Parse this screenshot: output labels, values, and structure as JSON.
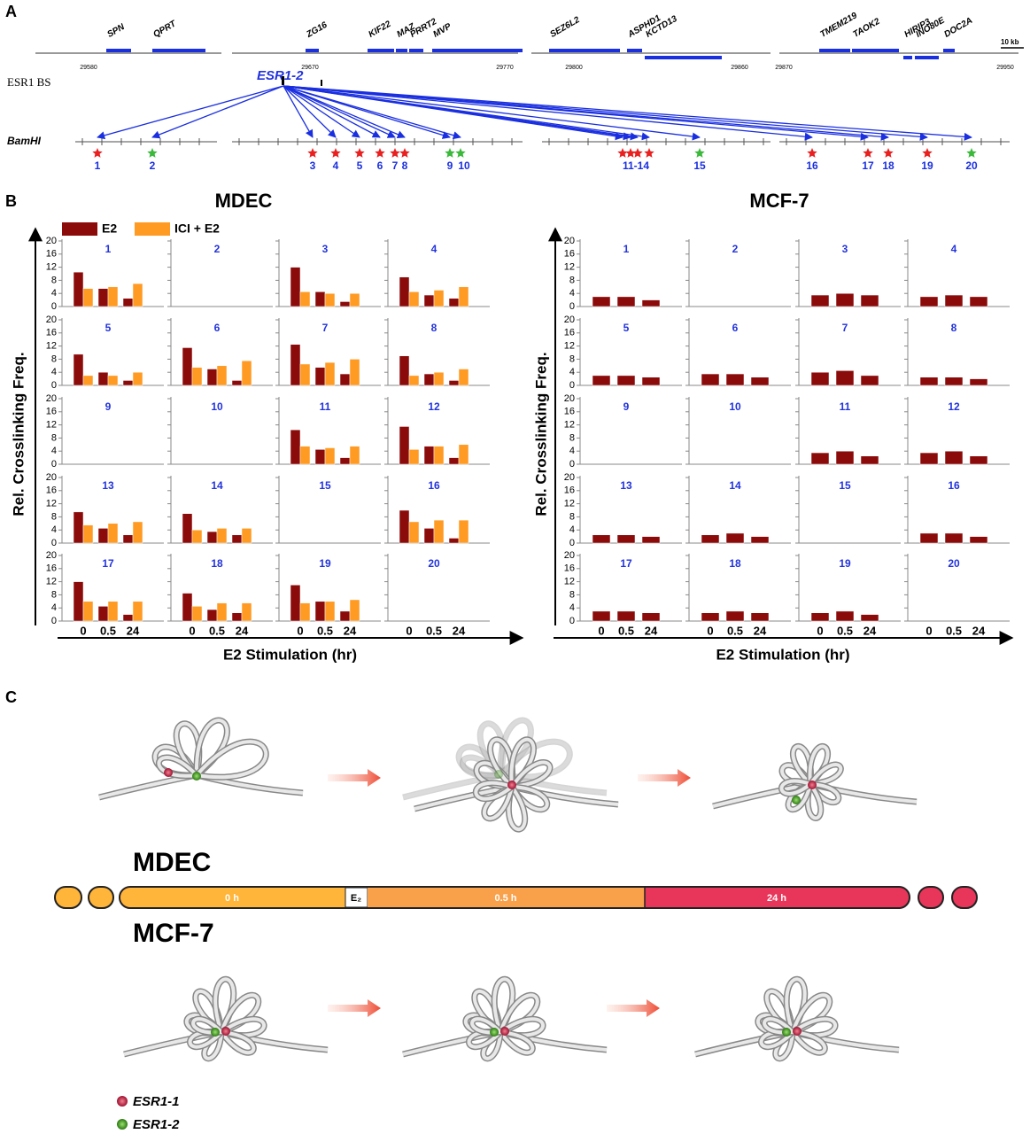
{
  "panel_labels": [
    "A",
    "B",
    "C"
  ],
  "map": {
    "genes": [
      "SPN",
      "QPRT",
      "ZG16",
      "KIF22",
      "MAZ",
      "PRRT2",
      "MVP",
      "SEZ6L2",
      "ASPHD1",
      "KCTD13",
      "TMEM219",
      "TAOK2",
      "HIRIP3",
      "INO80E",
      "DOC2A"
    ],
    "coordinates": [
      "29580",
      "29670",
      "29770",
      "29800",
      "29860",
      "29870",
      "29950"
    ],
    "scale": "10 kb",
    "track_label": "ESR1 BS",
    "site_label": "ESR1-2",
    "enzyme_label": "BamHI",
    "fragments": [
      {
        "label": "1",
        "stars": [
          "red"
        ]
      },
      {
        "label": "2",
        "stars": [
          "green"
        ]
      },
      {
        "label": "3",
        "stars": [
          "red"
        ]
      },
      {
        "label": "4",
        "stars": [
          "red"
        ]
      },
      {
        "label": "5",
        "stars": [
          "red"
        ]
      },
      {
        "label": "6",
        "stars": [
          "red"
        ]
      },
      {
        "label": "7",
        "stars": [
          "red"
        ]
      },
      {
        "label": "8",
        "stars": [
          "red"
        ]
      },
      {
        "label": "9",
        "stars": [
          "green"
        ]
      },
      {
        "label": "10",
        "stars": [
          "green"
        ]
      },
      {
        "label": "11-14",
        "stars": [
          "red",
          "red",
          "red",
          "red"
        ]
      },
      {
        "label": "15",
        "stars": [
          "green"
        ]
      },
      {
        "label": "16",
        "stars": [
          "red"
        ]
      },
      {
        "label": "17",
        "stars": [
          "red"
        ]
      },
      {
        "label": "18",
        "stars": [
          "red"
        ]
      },
      {
        "label": "19",
        "stars": [
          "red"
        ]
      },
      {
        "label": "20",
        "stars": [
          "green"
        ]
      }
    ]
  },
  "chart_data": [
    {
      "type": "bar",
      "title": "MDEC",
      "y_label": "Rel. Crosslinking Freq.",
      "x_label": "E2 Stimulation (hr)",
      "categories": [
        "0",
        "0.5",
        "24"
      ],
      "ylim": [
        0,
        20
      ],
      "yticks": [
        0,
        4,
        8,
        12,
        16,
        20
      ],
      "series": [
        {
          "name": "E2",
          "color": "#8b0a0a"
        },
        {
          "name": "ICI + E2",
          "color": "#ff9a22"
        }
      ],
      "panels": [
        {
          "label": "1",
          "series": [
            [
              10.5,
              5.5,
              2.5
            ],
            [
              5.5,
              6,
              7
            ]
          ]
        },
        {
          "label": "2"
        },
        {
          "label": "3",
          "series": [
            [
              12,
              4.5,
              1.5
            ],
            [
              4.5,
              4,
              4
            ]
          ]
        },
        {
          "label": "4",
          "series": [
            [
              9,
              3.5,
              2.5
            ],
            [
              4.5,
              5,
              6
            ]
          ]
        },
        {
          "label": "5",
          "series": [
            [
              9.5,
              4,
              1.5
            ],
            [
              3,
              3,
              4
            ]
          ]
        },
        {
          "label": "6",
          "series": [
            [
              11.5,
              5,
              1.5
            ],
            [
              5.5,
              6,
              7.5
            ]
          ]
        },
        {
          "label": "7",
          "series": [
            [
              12.5,
              5.5,
              3.5
            ],
            [
              6.5,
              7,
              8
            ]
          ]
        },
        {
          "label": "8",
          "series": [
            [
              9,
              3.5,
              1.5
            ],
            [
              3,
              4,
              5
            ]
          ]
        },
        {
          "label": "9"
        },
        {
          "label": "10"
        },
        {
          "label": "11",
          "series": [
            [
              10.5,
              4.5,
              2
            ],
            [
              5.5,
              5,
              5.5
            ]
          ]
        },
        {
          "label": "12",
          "series": [
            [
              11.5,
              5.5,
              2
            ],
            [
              4.5,
              5.5,
              6
            ]
          ]
        },
        {
          "label": "13",
          "series": [
            [
              9.5,
              4.5,
              2.5
            ],
            [
              5.5,
              6,
              6.5
            ]
          ]
        },
        {
          "label": "14",
          "series": [
            [
              9,
              3.5,
              2.5
            ],
            [
              4,
              4.5,
              4.5
            ]
          ]
        },
        {
          "label": "15"
        },
        {
          "label": "16",
          "series": [
            [
              10,
              4.5,
              1.5
            ],
            [
              6.5,
              7,
              7
            ]
          ]
        },
        {
          "label": "17",
          "series": [
            [
              12,
              4.5,
              2
            ],
            [
              6,
              6,
              6
            ]
          ]
        },
        {
          "label": "18",
          "series": [
            [
              8.5,
              3.5,
              2.5
            ],
            [
              4.5,
              5.5,
              5.5
            ]
          ]
        },
        {
          "label": "19",
          "series": [
            [
              11,
              6,
              3
            ],
            [
              5.5,
              6,
              6.5
            ]
          ]
        },
        {
          "label": "20"
        }
      ]
    },
    {
      "type": "bar",
      "title": "MCF-7",
      "y_label": "Rel. Crosslinking Freq.",
      "x_label": "E2 Stimulation (hr)",
      "categories": [
        "0",
        "0.5",
        "24"
      ],
      "ylim": [
        0,
        20
      ],
      "yticks": [
        0,
        4,
        8,
        12,
        16,
        20
      ],
      "series": [
        {
          "color": "#8b0a0a"
        }
      ],
      "panels": [
        {
          "label": "1",
          "series": [
            [
              3,
              3,
              2
            ]
          ]
        },
        {
          "label": "2"
        },
        {
          "label": "3",
          "series": [
            [
              3.5,
              4,
              3.5
            ]
          ]
        },
        {
          "label": "4",
          "series": [
            [
              3,
              3.5,
              3
            ]
          ]
        },
        {
          "label": "5",
          "series": [
            [
              3,
              3,
              2.5
            ]
          ]
        },
        {
          "label": "6",
          "series": [
            [
              3.5,
              3.5,
              2.5
            ]
          ]
        },
        {
          "label": "7",
          "series": [
            [
              4,
              4.5,
              3
            ]
          ]
        },
        {
          "label": "8",
          "series": [
            [
              2.5,
              2.5,
              2
            ]
          ]
        },
        {
          "label": "9"
        },
        {
          "label": "10"
        },
        {
          "label": "11",
          "series": [
            [
              3.5,
              4,
              2.5
            ]
          ]
        },
        {
          "label": "12",
          "series": [
            [
              3.5,
              4,
              2.5
            ]
          ]
        },
        {
          "label": "13",
          "series": [
            [
              2.5,
              2.5,
              2
            ]
          ]
        },
        {
          "label": "14",
          "series": [
            [
              2.5,
              3,
              2
            ]
          ]
        },
        {
          "label": "15"
        },
        {
          "label": "16",
          "series": [
            [
              3,
              3,
              2
            ]
          ]
        },
        {
          "label": "17",
          "series": [
            [
              3,
              3,
              2.5
            ]
          ]
        },
        {
          "label": "18",
          "series": [
            [
              2.5,
              3,
              2.5
            ]
          ]
        },
        {
          "label": "19",
          "series": [
            [
              2.5,
              3,
              2
            ]
          ]
        },
        {
          "label": "20"
        }
      ]
    }
  ],
  "model": {
    "groups": [
      "MDEC",
      "MCF-7"
    ],
    "timeline": [
      "0 h",
      "E₂",
      "0.5 h",
      "24 h"
    ],
    "legend": [
      "ESR1-1",
      "ESR1-2"
    ]
  }
}
